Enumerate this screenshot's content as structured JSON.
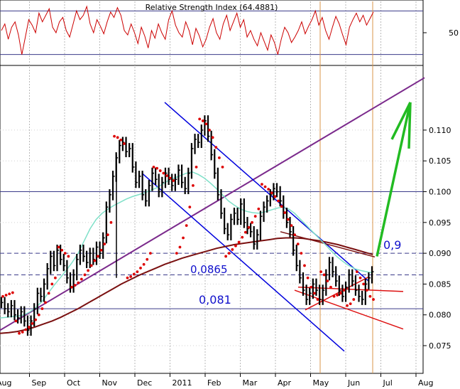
{
  "chart_data": [
    {
      "type": "line",
      "title": "Relative Strength Index (64.4881)",
      "ylim": [
        20,
        80
      ],
      "yticks": [
        {
          "label": "50",
          "value": 50
        }
      ],
      "levels": [
        70,
        30
      ],
      "series": [
        {
          "values": [
            52,
            58,
            44,
            55,
            60,
            48,
            30,
            46,
            62,
            57,
            50,
            68,
            60,
            66,
            72,
            55,
            50,
            60,
            64,
            52,
            46,
            58,
            70,
            62,
            66,
            74,
            58,
            50,
            62,
            56,
            49,
            60,
            69,
            64,
            73,
            66,
            52,
            48,
            58,
            50,
            40,
            55,
            47,
            36,
            52,
            45,
            58,
            50,
            44,
            62,
            70,
            57,
            50,
            46,
            60,
            52,
            39,
            54,
            47,
            37,
            44,
            55,
            63,
            50,
            44,
            58,
            66,
            52,
            60,
            68,
            55,
            62,
            46,
            52,
            44,
            38,
            50,
            42,
            34,
            48,
            41,
            30,
            44,
            55,
            50,
            41,
            46,
            52,
            60,
            49,
            56,
            62,
            70,
            57,
            64,
            52,
            44,
            55,
            65,
            58,
            48,
            39,
            55,
            62,
            68,
            60,
            66,
            57,
            63,
            69
          ]
        }
      ],
      "grid": true,
      "legend": "none"
    },
    {
      "type": "line",
      "categories": [
        "Aug",
        "Sep",
        "Oct",
        "Nov",
        "Dec",
        "2011",
        "Feb",
        "Mar",
        "Apr",
        "May",
        "Jun",
        "Jul",
        "Aug"
      ],
      "ylim": [
        0.0705,
        0.1205
      ],
      "yticks": [
        "0.075",
        "0.080",
        "0.085",
        "0.090",
        "0.095",
        "0.100",
        "0.105",
        "0.110"
      ],
      "price": [
        0.082,
        0.081,
        0.0805,
        0.0815,
        0.08,
        0.0795,
        0.0805,
        0.079,
        0.0775,
        0.079,
        0.081,
        0.0835,
        0.083,
        0.085,
        0.0875,
        0.0895,
        0.088,
        0.0905,
        0.089,
        0.088,
        0.086,
        0.0845,
        0.0865,
        0.089,
        0.0905,
        0.0895,
        0.0885,
        0.09,
        0.089,
        0.091,
        0.09,
        0.0925,
        0.0975,
        0.0995,
        0.1025,
        0.1055,
        0.1075,
        0.108,
        0.1065,
        0.107,
        0.104,
        0.1015,
        0.1025,
        0.0995,
        0.0985,
        0.101,
        0.103,
        0.102,
        0.1,
        0.1015,
        0.103,
        0.102,
        0.101,
        0.102,
        0.1035,
        0.1015,
        0.1005,
        0.103,
        0.107,
        0.1085,
        0.108,
        0.11,
        0.1115,
        0.109,
        0.106,
        0.103,
        0.0995,
        0.0965,
        0.094,
        0.093,
        0.0955,
        0.0965,
        0.0955,
        0.098,
        0.095,
        0.094,
        0.0935,
        0.0915,
        0.093,
        0.096,
        0.0975,
        0.0985,
        0.0995,
        0.1005,
        0.1,
        0.0985,
        0.0965,
        0.095,
        0.0935,
        0.0905,
        0.088,
        0.086,
        0.084,
        0.0825,
        0.0835,
        0.085,
        0.084,
        0.0825,
        0.084,
        0.0865,
        0.0885,
        0.087,
        0.0855,
        0.084,
        0.083,
        0.0845,
        0.0865,
        0.0855,
        0.084,
        0.083,
        0.0825,
        0.085,
        0.086,
        0.087
      ],
      "sar": [
        0.083,
        0.0832,
        0.0834,
        0.0836,
        0.079,
        0.077,
        0.0772,
        0.0776,
        0.078,
        0.0786,
        0.0792,
        0.08,
        0.081,
        0.082,
        0.0835,
        0.085,
        0.086,
        0.091,
        0.0905,
        0.09,
        0.0895,
        0.0845,
        0.0848,
        0.0852,
        0.0858,
        0.0865,
        0.0872,
        0.088,
        0.0888,
        0.0895,
        0.0905,
        0.0915,
        0.093,
        0.095,
        0.109,
        0.1088,
        0.1084,
        0.1078,
        0.086,
        0.0862,
        0.0866,
        0.087,
        0.0876,
        0.0882,
        0.089,
        0.09,
        0.104,
        0.1038,
        0.1034,
        0.103,
        0.1026,
        0.1022,
        0.1018,
        0.09,
        0.091,
        0.0925,
        0.0945,
        0.0975,
        0.101,
        0.104,
        0.1118,
        0.1115,
        0.111,
        0.11,
        0.1088,
        0.1072,
        0.1055,
        0.104,
        0.0895,
        0.09,
        0.0906,
        0.0912,
        0.0918,
        0.0926,
        0.0934,
        0.0942,
        0.095,
        0.096,
        0.0972,
        0.1012,
        0.1008,
        0.1004,
        0.0998,
        0.0992,
        0.0985,
        0.0976,
        0.0966,
        0.0955,
        0.0945,
        0.093,
        0.0915,
        0.09,
        0.088,
        0.086,
        0.0845,
        0.0835,
        0.0825,
        0.087,
        0.0865,
        0.0855,
        0.0845,
        0.083,
        0.0832,
        0.0835,
        0.084,
        0.0815,
        0.0818,
        0.0825,
        0.087,
        0.086,
        0.085,
        0.084,
        0.083,
        0.0825
      ],
      "ma_short": [
        0.0795,
        0.0796,
        0.0797,
        0.0798,
        0.08,
        0.0805,
        0.0812,
        0.0822,
        0.0835,
        0.0848,
        0.086,
        0.0872,
        0.0885,
        0.09,
        0.092,
        0.094,
        0.0955,
        0.0965,
        0.0972,
        0.0978,
        0.0983,
        0.0988,
        0.0992,
        0.0995,
        0.0998,
        0.1002,
        0.1006,
        0.1012,
        0.1018,
        0.1022,
        0.1026,
        0.103,
        0.1032,
        0.1028,
        0.1022,
        0.1014,
        0.1005,
        0.0995,
        0.0985,
        0.0978,
        0.0972,
        0.0968,
        0.0966,
        0.0965,
        0.0967,
        0.097,
        0.0973,
        0.0975,
        0.0972,
        0.0965,
        0.0955,
        0.0945,
        0.0935,
        0.0925,
        0.0915,
        0.0905,
        0.0895,
        0.0887,
        0.088,
        0.0875,
        0.0872,
        0.087,
        0.0868
      ],
      "ma_long": [
        0.077,
        0.0771,
        0.0773,
        0.0776,
        0.078,
        0.0785,
        0.079,
        0.0796,
        0.0803,
        0.081,
        0.0818,
        0.0826,
        0.0834,
        0.0842,
        0.085,
        0.0857,
        0.0864,
        0.087,
        0.0876,
        0.0882,
        0.0887,
        0.0892,
        0.0896,
        0.09,
        0.0904,
        0.0908,
        0.0911,
        0.0914,
        0.0916,
        0.0918,
        0.092,
        0.0922,
        0.0924,
        0.0925,
        0.0925,
        0.0924,
        0.0922,
        0.092,
        0.0917,
        0.0914,
        0.091,
        0.0906,
        0.0902,
        0.0898
      ],
      "annotations": {
        "level_high": "0,9",
        "level_mid": "0,0865",
        "level_low": "0,081"
      },
      "grid": true,
      "legend": "none"
    }
  ],
  "colors": {
    "rsi": "#cc0000",
    "price": "#000000",
    "sar": "#dd0000",
    "ma_short": "#7fe0c8",
    "ma_long": "#7a1010",
    "channel": "#0000dd",
    "trend": "#7b2a8c",
    "arrow": "#22bb22",
    "annot": "#1010cc",
    "vline": "#d9944a"
  }
}
